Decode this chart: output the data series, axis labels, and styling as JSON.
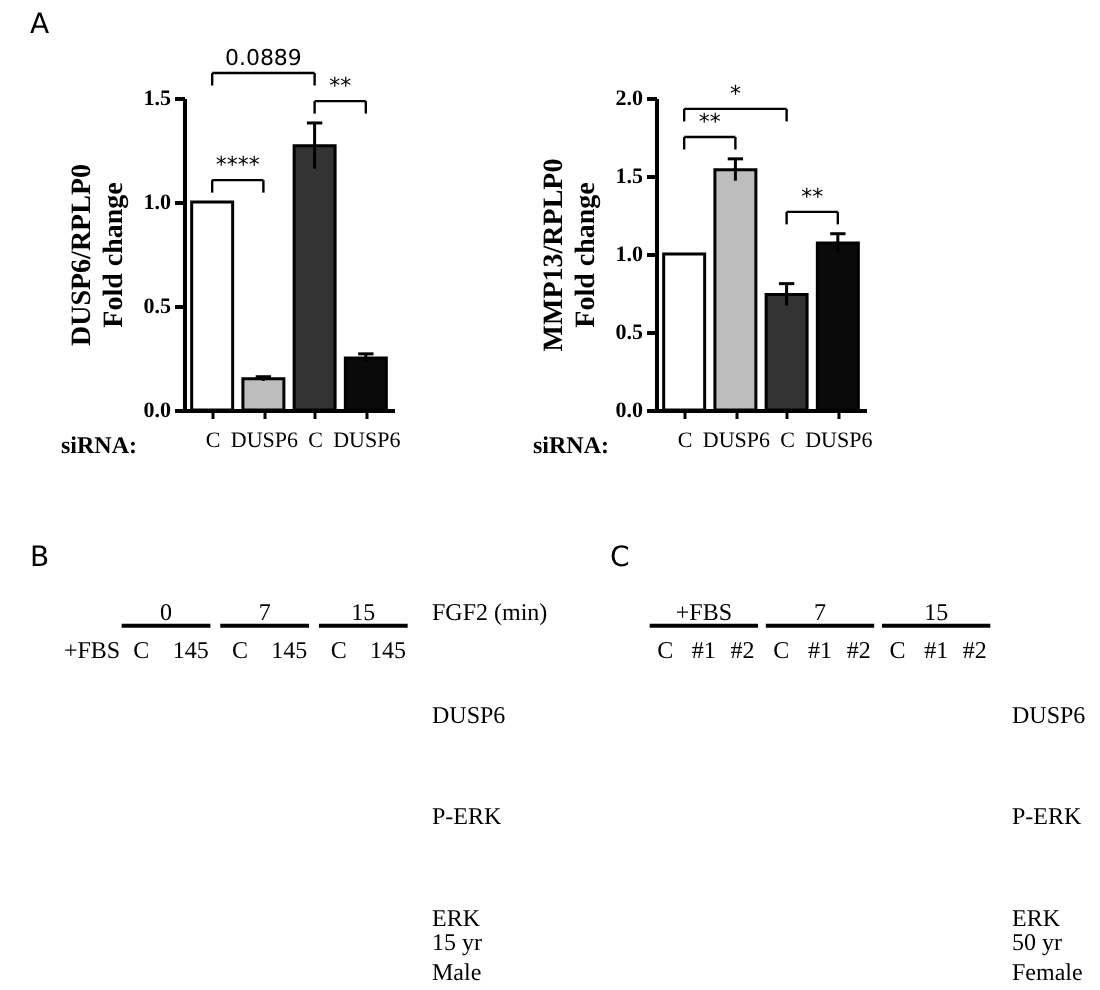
{
  "chart_data": [
    {
      "type": "bar",
      "title": "A",
      "categories": [
        "C",
        "DUSP6",
        "C",
        "DUSP6"
      ],
      "values": [
        1.0,
        0.15,
        1.27,
        0.25
      ],
      "errors": [
        null,
        0.01,
        0.11,
        0.02
      ],
      "colors": [
        "#ffffff",
        "#bdbdbd",
        "#333333",
        "#0a0a0a"
      ],
      "ylabel": "DUSP6/RPLP0\nFold change",
      "xlabel": "siRNA:",
      "ylim": [
        0,
        1.5
      ],
      "yticks": [
        {
          "value": 0,
          "label": "0.0"
        },
        {
          "value": 0.5,
          "label": "0.5"
        },
        {
          "value": 1,
          "label": "1.0"
        },
        {
          "value": 1.5,
          "label": "1.5"
        }
      ],
      "annotations": [
        "0.0889",
        "****",
        "**"
      ]
    },
    {
      "type": "bar",
      "categories": [
        "C",
        "DUSP6",
        "C",
        "DUSP6"
      ],
      "values": [
        1.0,
        1.54,
        0.74,
        1.07
      ],
      "errors": [
        null,
        0.07,
        0.07,
        0.06
      ],
      "colors": [
        "#ffffff",
        "#bdbdbd",
        "#333333",
        "#0a0a0a"
      ],
      "ylabel": "MMP13/RPLP0\nFold change",
      "xlabel": "siRNA:",
      "ylim": [
        0,
        2
      ],
      "yticks": [
        {
          "value": 0,
          "label": "0.0"
        },
        {
          "value": 0.5,
          "label": "0.5"
        },
        {
          "value": 1,
          "label": "1.0"
        },
        {
          "value": 1.5,
          "label": "1.5"
        },
        {
          "value": 2,
          "label": "2.0"
        }
      ],
      "annotations": [
        "*",
        "**",
        "**"
      ]
    },
    {
      "type": "other",
      "title": "B",
      "categories": [
        "+FBS",
        "C",
        "145",
        "C",
        "145",
        "C",
        "145"
      ],
      "y_categories": [
        "DUSP6",
        "P-ERK",
        "ERK"
      ],
      "xlabel": "FGF2 (min)",
      "annotations": [
        "0",
        "7",
        "15",
        "15 yr\nMale"
      ]
    },
    {
      "type": "other",
      "title": "C",
      "categories": [
        "C",
        "#1",
        "#2",
        "C",
        "#1",
        "#2",
        "C",
        "#1",
        "#2"
      ],
      "y_categories": [
        "DUSP6",
        "P-ERK",
        "ERK"
      ],
      "annotations": [
        "+FBS",
        "7",
        "15",
        "50 yr\nFemale"
      ]
    }
  ]
}
